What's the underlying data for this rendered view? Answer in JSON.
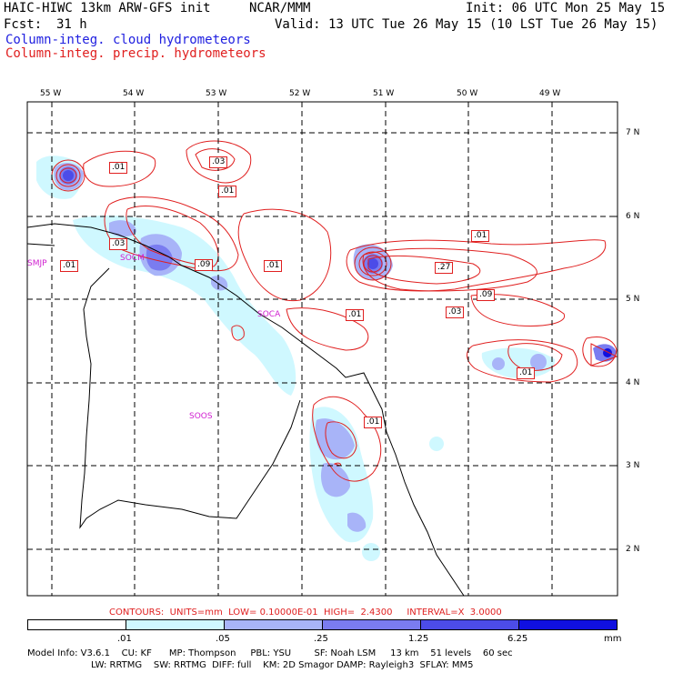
{
  "header": {
    "title_left": "HAIC-HIWC 13km ARW-GFS init",
    "org": "NCAR/MMM",
    "init": "Init: 06 UTC Mon 25 May 15",
    "fcst_label": "Fcst:",
    "fcst_value": "31 h",
    "valid": "Valid: 13 UTC Tue 26 May 15 (10 LST Tue 26 May 15)",
    "legend_cloud": "Column-integ. cloud hydrometeors",
    "legend_precip": "Column-integ. precip. hydrometeors"
  },
  "map": {
    "lon_labels": [
      "55 W",
      "54 W",
      "53 W",
      "52 W",
      "51 W",
      "50 W",
      "49 W"
    ],
    "lat_labels": [
      "7 N",
      "6 N",
      "5 N",
      "4 N",
      "3 N",
      "2 N"
    ],
    "contour_labels": [
      ".01",
      ".03",
      ".01",
      ".03",
      ".09",
      ".01",
      ".01",
      ".01",
      ".27",
      ".09",
      ".03",
      ".01",
      ".01",
      ".01"
    ],
    "stations": [
      "SMJP",
      "SOCM",
      "SOCA",
      "SOOS"
    ]
  },
  "contours_info": "CONTOURS:  UNITS=mm  LOW= 0.10000E-01  HIGH=  2.4300     INTERVAL=X  3.0000",
  "colorbar": {
    "ticks": [
      ".01",
      ".05",
      ".25",
      "1.25",
      "6.25"
    ],
    "unit": "mm",
    "colors": [
      "#ffffff",
      "#cff8ff",
      "#a8b4f8",
      "#7a7cf0",
      "#4c4ce8",
      "#1010e0"
    ]
  },
  "model_info": {
    "line1": "Model Info: V3.6.1    CU: KF      MP: Thompson     PBL: YSU        SF: Noah LSM     13 km    51 levels    60 sec",
    "line2": "LW: RRTMG    SW: RRTMG  DIFF: full    KM: 2D Smagor DAMP: Rayleigh3  SFLAY: MM5"
  }
}
